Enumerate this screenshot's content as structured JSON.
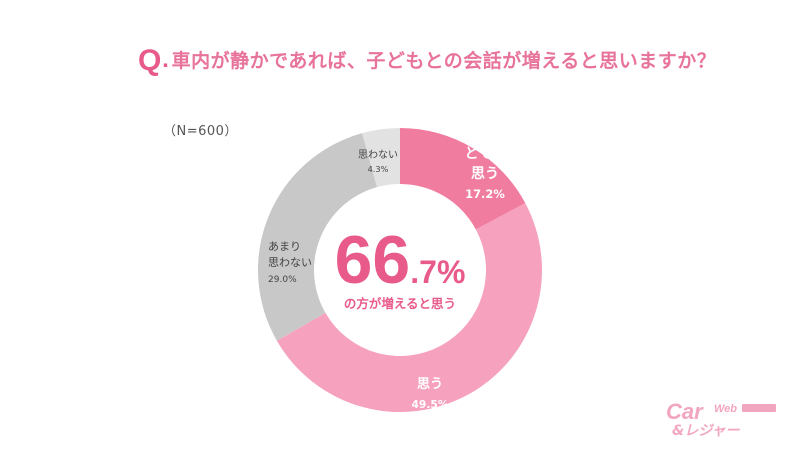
{
  "title": {
    "q_letter": "Q",
    "q_dot": ".",
    "text": "車内が静かであれば、子どもとの会話が増えると思いますか？"
  },
  "sample_size": "（N=600）",
  "center": {
    "big_number": "66",
    "decimal": ".7%",
    "caption": "の方が増えると思う"
  },
  "logo": {
    "top_text": "Car",
    "web_text": "Web",
    "bottom_text": "&レジャー"
  },
  "colors": {
    "title": "#e8739a",
    "accent": "#e85a8a",
    "slice_strong": "#f07ca0",
    "slice_think": "#f6a2be",
    "slice_not_much": "#c8c8c8",
    "slice_not": "#e2e2e2"
  },
  "chart_data": {
    "type": "pie",
    "variant": "donut",
    "slices": [
      {
        "label": [
          "とても",
          "思う"
        ],
        "value": 17.2,
        "value_label": "17.2%",
        "color": "#f07ca0",
        "text_color": "#ffffff",
        "bold": true
      },
      {
        "label": [
          "思う"
        ],
        "value": 49.5,
        "value_label": "49.5%",
        "color": "#f6a2be",
        "text_color": "#ffffff",
        "bold": true
      },
      {
        "label": [
          "あまり",
          "思わない"
        ],
        "value": 29.0,
        "value_label": "29.0%",
        "color": "#c8c8c8",
        "text_color": "#444444",
        "bold": false
      },
      {
        "label": [
          "思わない"
        ],
        "value": 4.3,
        "value_label": "4.3%",
        "color": "#e2e2e2",
        "text_color": "#444444",
        "bold": false
      }
    ]
  }
}
